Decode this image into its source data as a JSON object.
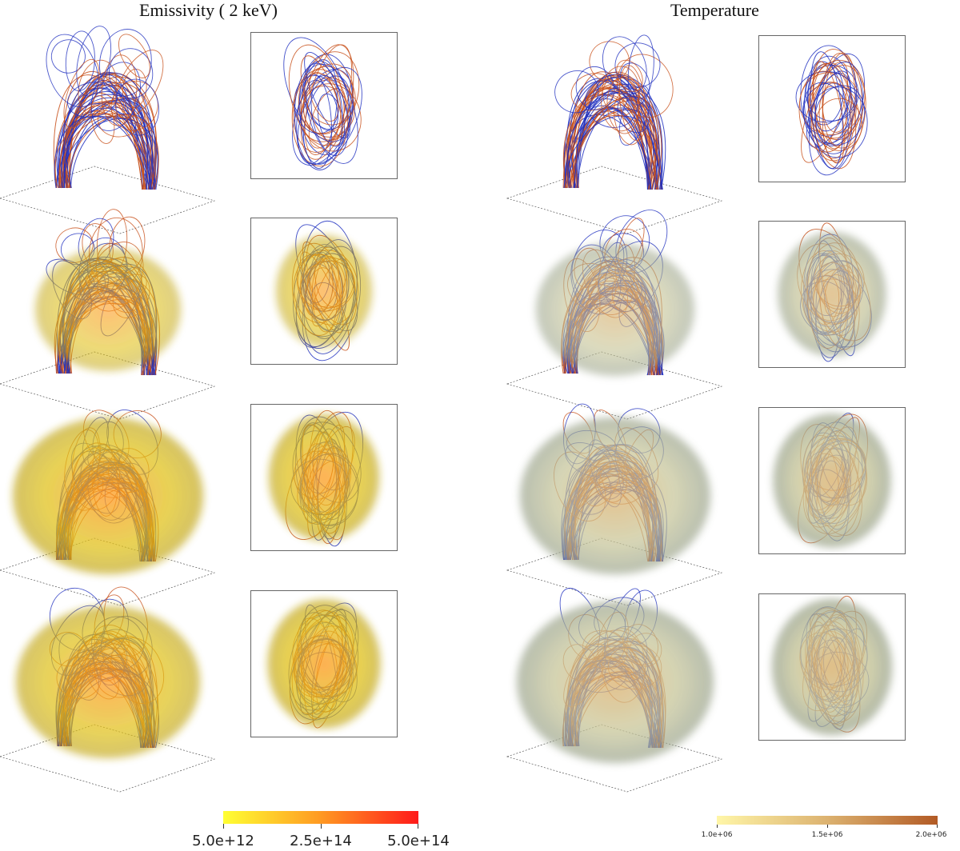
{
  "titles": {
    "left": "Emissivity ( 2 keV)",
    "right": "Temperature"
  },
  "colors": {
    "field_line_blue": "#1f2fbf",
    "field_line_orange": "#c8501a",
    "emissivity_low": "#ffff33",
    "emissivity_mid": "#ff9922",
    "emissivity_high": "#ff1a1a",
    "temperature_low": "#fff6a8",
    "temperature_mid": "#dcb270",
    "temperature_high": "#b25a25",
    "temperature_surface": "#c9c79a"
  },
  "colorbars": {
    "emissivity": {
      "ticks": [
        "5.0e+12",
        "2.5e+14",
        "5.0e+14"
      ]
    },
    "temperature": {
      "ticks": [
        "1.0e+06",
        "1.5e+06",
        "2.0e+06"
      ]
    }
  },
  "panels": [
    {
      "column": "emissivity",
      "view": "oblique",
      "row": 1,
      "fill_level": 0.0
    },
    {
      "column": "emissivity",
      "view": "top",
      "row": 1,
      "fill_level": 0.0
    },
    {
      "column": "emissivity",
      "view": "oblique",
      "row": 2,
      "fill_level": 0.45
    },
    {
      "column": "emissivity",
      "view": "top",
      "row": 2,
      "fill_level": 0.5
    },
    {
      "column": "emissivity",
      "view": "oblique",
      "row": 3,
      "fill_level": 0.8
    },
    {
      "column": "emissivity",
      "view": "top",
      "row": 3,
      "fill_level": 0.8
    },
    {
      "column": "emissivity",
      "view": "oblique",
      "row": 4,
      "fill_level": 0.75
    },
    {
      "column": "emissivity",
      "view": "top",
      "row": 4,
      "fill_level": 0.85
    },
    {
      "column": "temperature",
      "view": "oblique",
      "row": 1,
      "fill_level": 0.0
    },
    {
      "column": "temperature",
      "view": "top",
      "row": 1,
      "fill_level": 0.0
    },
    {
      "column": "temperature",
      "view": "oblique",
      "row": 2,
      "fill_level": 0.55
    },
    {
      "column": "temperature",
      "view": "top",
      "row": 2,
      "fill_level": 0.75
    },
    {
      "column": "temperature",
      "view": "oblique",
      "row": 3,
      "fill_level": 0.8
    },
    {
      "column": "temperature",
      "view": "top",
      "row": 3,
      "fill_level": 0.95
    },
    {
      "column": "temperature",
      "view": "oblique",
      "row": 4,
      "fill_level": 0.85
    },
    {
      "column": "temperature",
      "view": "top",
      "row": 4,
      "fill_level": 1.0
    }
  ]
}
